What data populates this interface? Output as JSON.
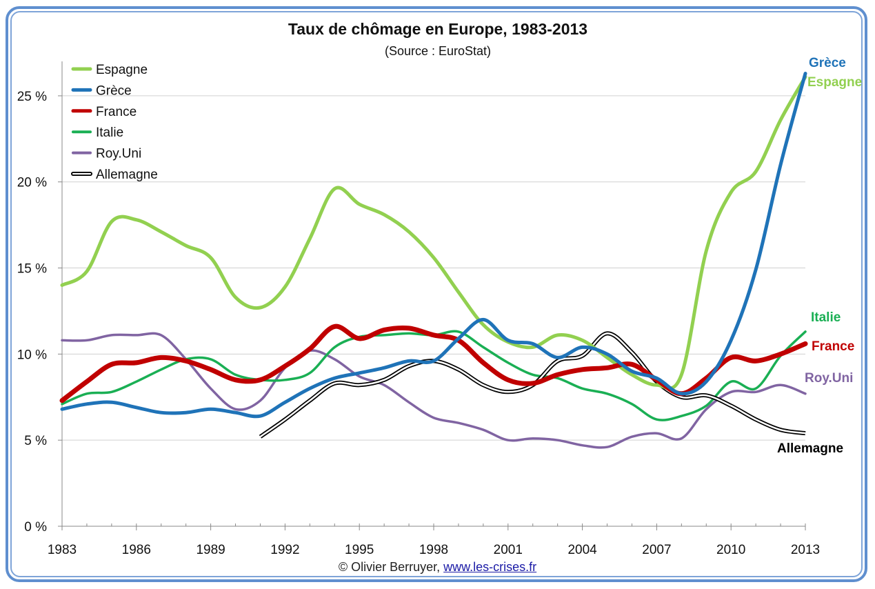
{
  "chart_data": {
    "type": "line",
    "title": "Taux de chômage en Europe, 1983-2013",
    "subtitle": "(Source : EuroStat)",
    "xlabel": "",
    "ylabel": "",
    "x": [
      1983,
      1984,
      1985,
      1986,
      1987,
      1988,
      1989,
      1990,
      1991,
      1992,
      1993,
      1994,
      1995,
      1996,
      1997,
      1998,
      1999,
      2000,
      2001,
      2002,
      2003,
      2004,
      2005,
      2006,
      2007,
      2008,
      2009,
      2010,
      2011,
      2012,
      2013
    ],
    "x_ticks": [
      "1983",
      "1986",
      "1989",
      "1992",
      "1995",
      "1998",
      "2001",
      "2004",
      "2007",
      "2010",
      "2013"
    ],
    "y_ticks": [
      "0 %",
      "5 %",
      "10 %",
      "15 %",
      "20 %",
      "25 %"
    ],
    "ylim": [
      0,
      27
    ],
    "xlim": [
      1983,
      2013
    ],
    "grid": "horizontal",
    "legend_position": "top-left",
    "series": [
      {
        "name": "Espagne",
        "color": "#92d050",
        "style": "solid-thick",
        "end_label": "Espagne",
        "values": [
          14.0,
          14.8,
          17.7,
          17.8,
          17.1,
          16.3,
          15.6,
          13.3,
          12.7,
          13.9,
          16.7,
          19.6,
          18.7,
          18.1,
          17.1,
          15.6,
          13.6,
          11.7,
          10.7,
          10.4,
          11.1,
          10.8,
          9.8,
          8.8,
          8.2,
          8.8,
          16.0,
          19.4,
          20.6,
          23.6,
          26.1
        ]
      },
      {
        "name": "Grèce",
        "color": "#1f73b8",
        "style": "solid-thick",
        "end_label": "Grèce",
        "values": [
          6.8,
          7.1,
          7.2,
          6.9,
          6.6,
          6.6,
          6.8,
          6.6,
          6.4,
          7.2,
          8.0,
          8.6,
          8.9,
          9.2,
          9.6,
          9.6,
          10.9,
          12.0,
          10.8,
          10.6,
          9.8,
          10.4,
          10.0,
          9.0,
          8.6,
          7.7,
          8.4,
          10.8,
          14.9,
          21.0,
          26.3
        ]
      },
      {
        "name": "France",
        "color": "#c00000",
        "style": "solid-thicker",
        "end_label": "France",
        "values": [
          7.3,
          8.4,
          9.4,
          9.5,
          9.8,
          9.6,
          9.1,
          8.5,
          8.5,
          9.3,
          10.3,
          11.6,
          10.9,
          11.4,
          11.5,
          11.1,
          10.8,
          9.5,
          8.5,
          8.3,
          8.8,
          9.1,
          9.2,
          9.4,
          8.5,
          7.7,
          8.6,
          9.8,
          9.6,
          10.0,
          10.6
        ]
      },
      {
        "name": "Italie",
        "color": "#1aaf54",
        "style": "solid",
        "end_label": "Italie",
        "values": [
          7.1,
          7.7,
          7.8,
          8.4,
          9.1,
          9.7,
          9.7,
          8.8,
          8.5,
          8.5,
          8.9,
          10.4,
          11.0,
          11.1,
          11.2,
          11.1,
          11.3,
          10.4,
          9.5,
          8.8,
          8.6,
          8.0,
          7.7,
          7.1,
          6.2,
          6.4,
          7.0,
          8.4,
          8.0,
          9.9,
          11.3
        ]
      },
      {
        "name": "Roy.Uni",
        "color": "#8064a2",
        "style": "solid",
        "end_label": "Roy.Uni",
        "values": [
          10.8,
          10.8,
          11.1,
          11.1,
          11.1,
          9.7,
          8.0,
          6.8,
          7.3,
          9.2,
          10.2,
          9.7,
          8.7,
          8.2,
          7.2,
          6.3,
          6.0,
          5.6,
          5.0,
          5.1,
          5.0,
          4.7,
          4.6,
          5.2,
          5.4,
          5.1,
          6.8,
          7.8,
          7.8,
          8.2,
          7.7
        ]
      },
      {
        "name": "Allemagne",
        "color": "#000000",
        "style": "double",
        "end_label": "Allemagne",
        "values": [
          null,
          null,
          null,
          null,
          null,
          null,
          null,
          null,
          5.2,
          6.2,
          7.3,
          8.3,
          8.2,
          8.5,
          9.3,
          9.6,
          9.1,
          8.2,
          7.8,
          8.2,
          9.6,
          9.9,
          11.2,
          10.1,
          8.4,
          7.5,
          7.6,
          7.0,
          6.2,
          5.6,
          5.4
        ]
      }
    ]
  },
  "footer": {
    "credit": "© Olivier Berruyer, ",
    "link_text": "www.les-crises.fr"
  }
}
